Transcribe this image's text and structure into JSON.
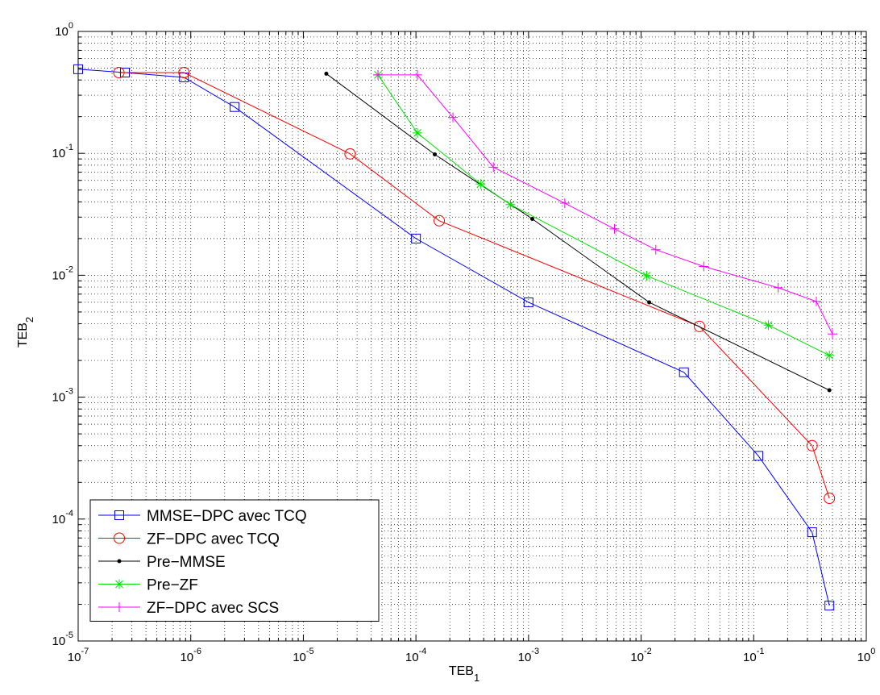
{
  "chart_data": {
    "type": "line",
    "xlabel": {
      "base": "TEB",
      "sub": "1"
    },
    "ylabel": {
      "base": "TEB",
      "sub": "2"
    },
    "xscale": "log",
    "yscale": "log",
    "xlim": [
      1e-07,
      1
    ],
    "ylim": [
      1e-05,
      1
    ],
    "grid": true,
    "legend_position": "bottom-left",
    "x_ticks": [
      {
        "base": "10",
        "exp": "-7"
      },
      {
        "base": "10",
        "exp": "-6"
      },
      {
        "base": "10",
        "exp": "-5"
      },
      {
        "base": "10",
        "exp": "-4"
      },
      {
        "base": "10",
        "exp": "-3"
      },
      {
        "base": "10",
        "exp": "-2"
      },
      {
        "base": "10",
        "exp": "-1"
      },
      {
        "base": "10",
        "exp": "0"
      }
    ],
    "y_ticks": [
      {
        "base": "10",
        "exp": "-5"
      },
      {
        "base": "10",
        "exp": "-4"
      },
      {
        "base": "10",
        "exp": "-3"
      },
      {
        "base": "10",
        "exp": "-2"
      },
      {
        "base": "10",
        "exp": "-1"
      },
      {
        "base": "10",
        "exp": "0"
      }
    ],
    "series": [
      {
        "name": "MMSE−DPC avec TCQ",
        "color": "#0000ff",
        "marker": "square",
        "x": [
          1e-07,
          2.6e-07,
          8.7e-07,
          2.45e-06,
          0.0001,
          0.001,
          0.024,
          0.11,
          0.33,
          0.47
        ],
        "y": [
          0.49,
          0.46,
          0.42,
          0.24,
          0.02,
          0.006,
          0.0016,
          0.00033,
          7.8e-05,
          1.95e-05
        ]
      },
      {
        "name": "ZF−DPC avec TCQ",
        "color": "#ff0000",
        "marker": "circle",
        "x": [
          2.3e-07,
          8.7e-07,
          2.6e-05,
          0.000161,
          0.033,
          0.33,
          0.47
        ],
        "y": [
          0.46,
          0.46,
          0.099,
          0.028,
          0.0038,
          0.0004,
          0.000148
        ]
      },
      {
        "name": "Pre−MMSE",
        "color": "#000000",
        "marker": "dot",
        "x": [
          1.6e-05,
          0.000147,
          0.00108,
          0.0118,
          0.47
        ],
        "y": [
          0.45,
          0.098,
          0.029,
          0.006,
          0.00114
        ]
      },
      {
        "name": "Pre−ZF",
        "color": "#00e000",
        "marker": "star",
        "x": [
          4.6e-05,
          0.000103,
          0.000375,
          0.00069,
          0.0112,
          0.135,
          0.47
        ],
        "y": [
          0.44,
          0.147,
          0.056,
          0.038,
          0.0099,
          0.0039,
          0.0022
        ]
      },
      {
        "name": "ZF−DPC avec SCS",
        "color": "#ff00ff",
        "marker": "plus",
        "x": [
          4.6e-05,
          0.000103,
          0.000213,
          0.000487,
          0.0021,
          0.0058,
          0.0135,
          0.036,
          0.165,
          0.36,
          0.5
        ],
        "y": [
          0.44,
          0.44,
          0.197,
          0.077,
          0.039,
          0.024,
          0.0162,
          0.0118,
          0.0079,
          0.0061,
          0.0033
        ]
      }
    ]
  }
}
